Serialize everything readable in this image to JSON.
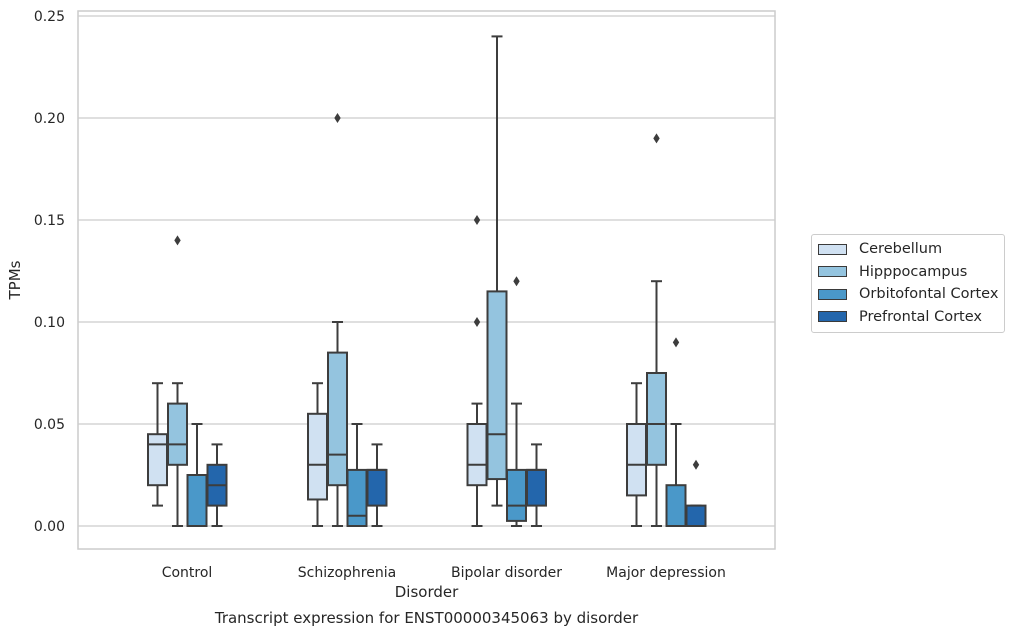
{
  "chart_data": {
    "type": "box",
    "xlabel": "Disorder",
    "ylabel": "TPMs",
    "caption": "Transcript expression for ENST00000345063 by disorder",
    "categories": [
      "Control",
      "Schizophrenia",
      "Bipolar disorder",
      "Major depression"
    ],
    "ylim": [
      -0.011,
      0.253
    ],
    "yticks": [
      "0.00",
      "0.05",
      "0.10",
      "0.15",
      "0.20",
      "0.25"
    ],
    "ytick_values": [
      0,
      0.05,
      0.1,
      0.15,
      0.2,
      0.25
    ],
    "grid": "horizontal",
    "legend_placement": "right",
    "series": [
      {
        "name": "Cerebellum",
        "color": "#d0e1f2",
        "boxes": [
          {
            "whisker_low": 0.01,
            "q1": 0.02,
            "median": 0.04,
            "q3": 0.045,
            "whisker_high": 0.07,
            "outliers": []
          },
          {
            "whisker_low": 0.0,
            "q1": 0.013,
            "median": 0.03,
            "q3": 0.055,
            "whisker_high": 0.07,
            "outliers": []
          },
          {
            "whisker_low": 0.0,
            "q1": 0.02,
            "median": 0.03,
            "q3": 0.05,
            "whisker_high": 0.06,
            "outliers": [
              0.1,
              0.15
            ]
          },
          {
            "whisker_low": 0.0,
            "q1": 0.015,
            "median": 0.03,
            "q3": 0.05,
            "whisker_high": 0.07,
            "outliers": []
          }
        ]
      },
      {
        "name": "Hipppocampus",
        "color": "#94c4df",
        "boxes": [
          {
            "whisker_low": 0.0,
            "q1": 0.03,
            "median": 0.04,
            "q3": 0.06,
            "whisker_high": 0.07,
            "outliers": [
              0.14
            ]
          },
          {
            "whisker_low": 0.0,
            "q1": 0.02,
            "median": 0.035,
            "q3": 0.085,
            "whisker_high": 0.1,
            "outliers": [
              0.2
            ]
          },
          {
            "whisker_low": 0.01,
            "q1": 0.023,
            "median": 0.045,
            "q3": 0.115,
            "whisker_high": 0.24,
            "outliers": []
          },
          {
            "whisker_low": 0.0,
            "q1": 0.03,
            "median": 0.05,
            "q3": 0.075,
            "whisker_high": 0.12,
            "outliers": [
              0.19
            ]
          }
        ]
      },
      {
        "name": "Orbitofontal Cortex",
        "color": "#4a98c9",
        "boxes": [
          {
            "whisker_low": 0.0,
            "q1": 0.0,
            "median": 0.0,
            "q3": 0.025,
            "whisker_high": 0.05,
            "outliers": []
          },
          {
            "whisker_low": 0.0,
            "q1": 0.0,
            "median": 0.005,
            "q3": 0.0275,
            "whisker_high": 0.05,
            "outliers": []
          },
          {
            "whisker_low": 0.0,
            "q1": 0.0025,
            "median": 0.01,
            "q3": 0.0275,
            "whisker_high": 0.06,
            "outliers": [
              0.12
            ]
          },
          {
            "whisker_low": 0.0,
            "q1": 0.0,
            "median": 0.0,
            "q3": 0.02,
            "whisker_high": 0.05,
            "outliers": [
              0.09
            ]
          }
        ]
      },
      {
        "name": "Prefrontal Cortex",
        "color": "#2366ac",
        "boxes": [
          {
            "whisker_low": 0.0,
            "q1": 0.01,
            "median": 0.02,
            "q3": 0.03,
            "whisker_high": 0.04,
            "outliers": []
          },
          {
            "whisker_low": 0.0,
            "q1": 0.01,
            "median": 0.0275,
            "q3": 0.0275,
            "whisker_high": 0.04,
            "outliers": []
          },
          {
            "whisker_low": 0.0,
            "q1": 0.01,
            "median": 0.0275,
            "q3": 0.0275,
            "whisker_high": 0.04,
            "outliers": []
          },
          {
            "whisker_low": 0.0,
            "q1": 0.0,
            "median": 0.0,
            "q3": 0.01,
            "whisker_high": 0.01,
            "outliers": [
              0.03
            ]
          }
        ]
      }
    ]
  }
}
